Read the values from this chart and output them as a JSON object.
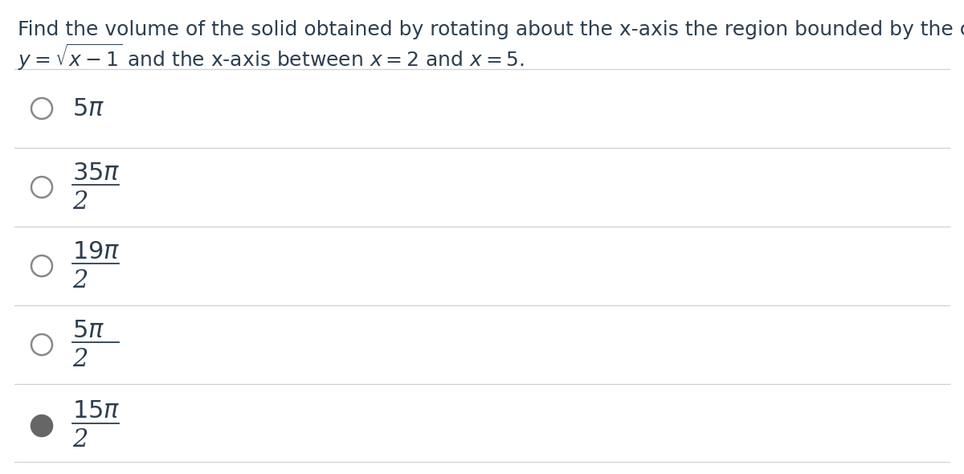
{
  "background_color": "#ffffff",
  "question_line1": "Find the volume of the solid obtained by rotating about the x-axis the region bounded by the curve",
  "question_line2": "$y = \\sqrt{x-1}$ and the x-axis between $x = 2$ and $x = 5$.",
  "options": [
    {
      "label": "$5\\pi$",
      "is_fraction": false,
      "selected": false
    },
    {
      "label_num": "$35\\pi$",
      "label_den": "2",
      "is_fraction": true,
      "selected": false
    },
    {
      "label_num": "$19\\pi$",
      "label_den": "2",
      "is_fraction": true,
      "selected": false
    },
    {
      "label_num": "$5\\pi$",
      "label_den": "2",
      "is_fraction": true,
      "selected": false
    },
    {
      "label_num": "$15\\pi$",
      "label_den": "2",
      "is_fraction": true,
      "selected": true
    }
  ],
  "divider_color": "#d0d0d0",
  "circle_edge_color": "#888888",
  "circle_selected_fill": "#666666",
  "circle_unselected_fill": "#ffffff",
  "text_color": "#2c3e50",
  "font_size_question": 18,
  "font_size_option": 22,
  "fig_width": 12.0,
  "fig_height": 5.9
}
